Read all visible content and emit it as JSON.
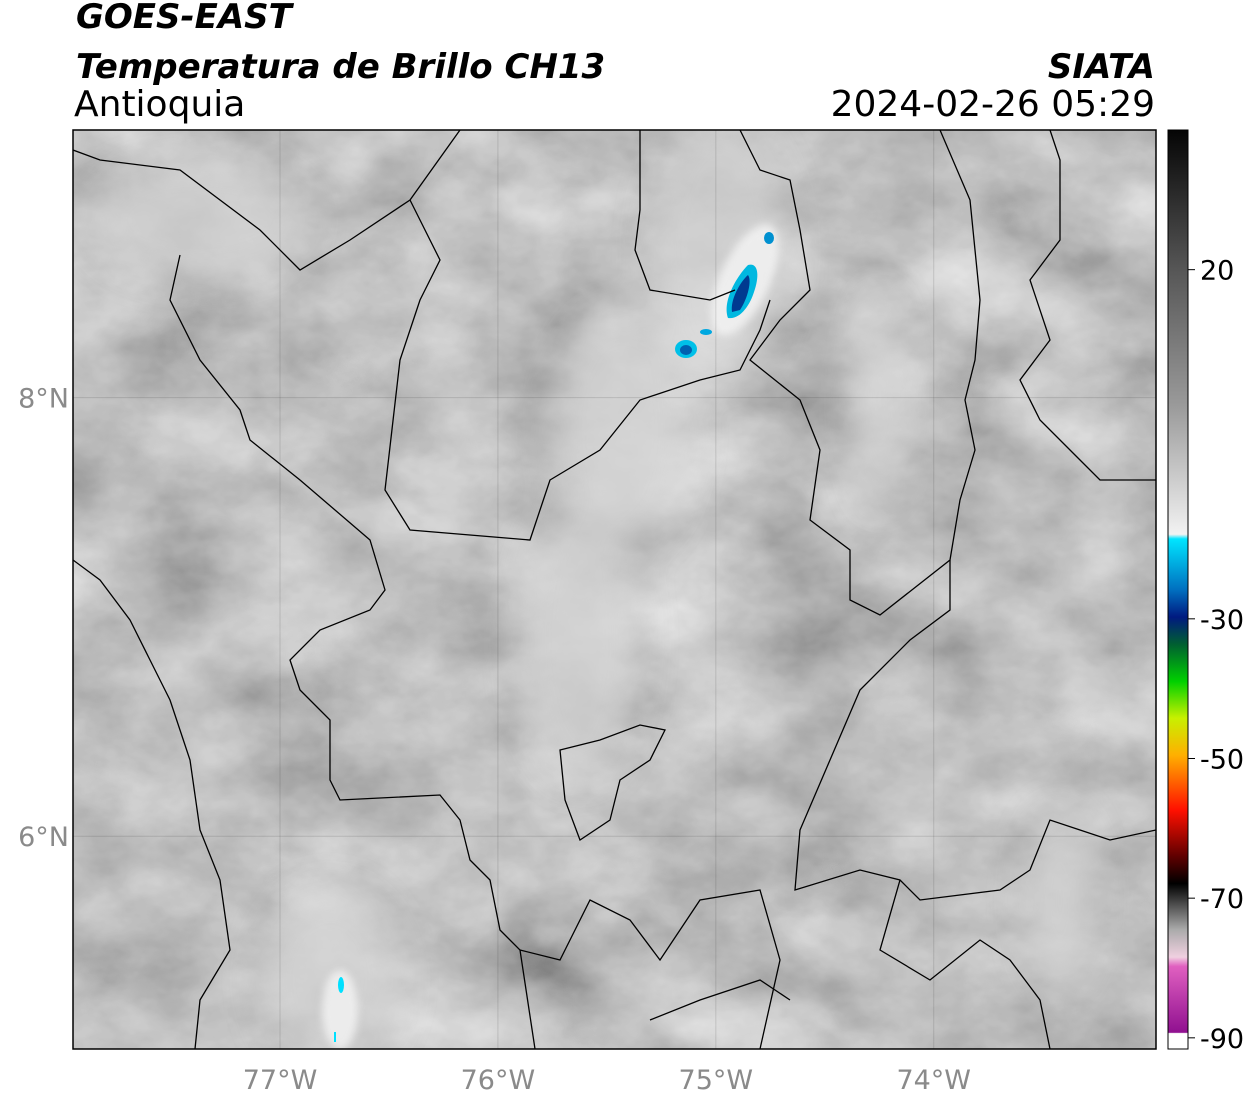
{
  "header": {
    "satellite": "GOES-EAST",
    "product": "Temperatura de Brillo CH13",
    "region": "Antioquia",
    "source": "SIATA",
    "datetime": "2024-02-26 05:29"
  },
  "map": {
    "xlim": [
      -77.95,
      -72.98
    ],
    "ylim": [
      5.03,
      9.22
    ],
    "xticks": [
      {
        "value": -77,
        "label": "77°W"
      },
      {
        "value": -76,
        "label": "76°W"
      },
      {
        "value": -75,
        "label": "75°W"
      },
      {
        "value": -74,
        "label": "74°W"
      }
    ],
    "yticks": [
      {
        "value": 6,
        "label": "6°N"
      },
      {
        "value": 8,
        "label": "8°N"
      }
    ],
    "grid": true
  },
  "colorbar": {
    "lim": [
      -91.6,
      40
    ],
    "ticks": [
      -90,
      -70,
      -50,
      -30,
      20
    ]
  }
}
